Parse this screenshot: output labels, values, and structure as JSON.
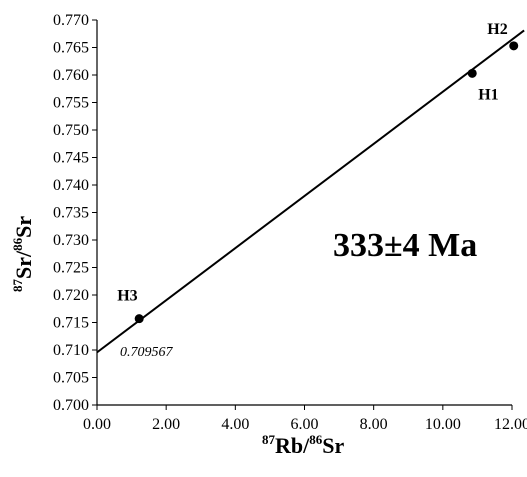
{
  "chart_data": {
    "type": "scatter",
    "x_axis": {
      "isotope_prefix": "87",
      "label_element": "Rb/",
      "isotope_suffix": "86",
      "label_element_2": "Sr",
      "range": [
        0,
        12
      ],
      "ticks": [
        "0.00",
        "2.00",
        "4.00",
        "6.00",
        "8.00",
        "10.00",
        "12.00"
      ],
      "tick_values": [
        0,
        2,
        4,
        6,
        8,
        10,
        12
      ]
    },
    "y_axis": {
      "isotope_prefix": "87",
      "label_element": "Sr/",
      "isotope_suffix": "86",
      "label_element_2": "Sr",
      "range": [
        0.7,
        0.77
      ],
      "ticks": [
        "0.700",
        "0.705",
        "0.710",
        "0.715",
        "0.720",
        "0.725",
        "0.730",
        "0.735",
        "0.740",
        "0.745",
        "0.750",
        "0.755",
        "0.760",
        "0.765",
        "0.770"
      ],
      "tick_values": [
        0.7,
        0.705,
        0.71,
        0.715,
        0.72,
        0.725,
        0.73,
        0.735,
        0.74,
        0.745,
        0.75,
        0.755,
        0.76,
        0.765,
        0.77
      ]
    },
    "points": [
      {
        "label": "H1",
        "x": 10.85,
        "y": 0.7603
      },
      {
        "label": "H2",
        "x": 12.05,
        "y": 0.7653
      },
      {
        "label": "H3",
        "x": 1.22,
        "y": 0.7157
      }
    ],
    "regression": {
      "intercept": 0.709567,
      "slope": 0.004739,
      "x_start": 0,
      "x_end": 12.35
    },
    "annotations": {
      "age": "333±4 Ma",
      "intercept_label": "0.709567"
    },
    "grid": false
  }
}
